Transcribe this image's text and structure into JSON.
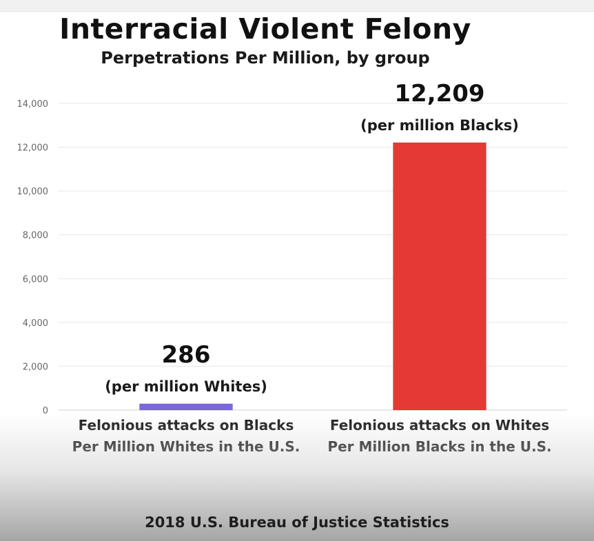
{
  "title": "Interracial Violent Felony",
  "subtitle": "Perpetrations Per Million, by group",
  "source": "2018 U.S. Bureau of Justice Statistics",
  "chart_data": {
    "type": "bar",
    "categories": [
      [
        "Felonious attacks on Blacks",
        "Per Million Whites in the U.S."
      ],
      [
        "Felonious attacks on Whites",
        "Per Million Blacks in the U.S."
      ]
    ],
    "values": [
      286,
      12209
    ],
    "value_labels": [
      "286",
      "12,209"
    ],
    "value_sublabels": [
      "(per million Whites)",
      "(per million Blacks)"
    ],
    "bar_colors": [
      "#7b68dd",
      "#e53935"
    ],
    "ylim": [
      0,
      14000
    ],
    "yticks": [
      0,
      2000,
      4000,
      6000,
      8000,
      10000,
      12000,
      14000
    ],
    "ytick_labels": [
      "0",
      "2,000",
      "4,000",
      "6,000",
      "8,000",
      "10,000",
      "12,000",
      "14,000"
    ],
    "grid": true
  }
}
